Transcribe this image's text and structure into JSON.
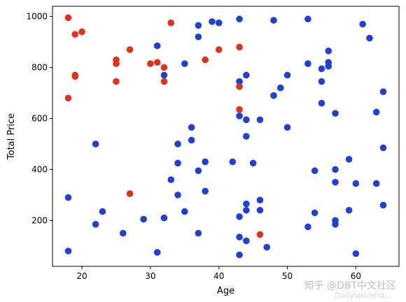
{
  "chart_data": {
    "type": "scatter",
    "title": "",
    "xlabel": "Age",
    "ylabel": "Total Price",
    "xlim": [
      15.7,
      66.3
    ],
    "ylim": [
      20,
      1040
    ],
    "xticks": [
      20,
      30,
      40,
      50,
      60
    ],
    "yticks": [
      200,
      400,
      600,
      800,
      1000
    ],
    "grid": false,
    "legend": "none",
    "colors": {
      "blue": "#1f3fd6",
      "red": "#e0301e"
    },
    "series": [
      {
        "color": "#1f3fd6",
        "points": [
          [
            18,
            80
          ],
          [
            18,
            290
          ],
          [
            22,
            185
          ],
          [
            22,
            500
          ],
          [
            23,
            235
          ],
          [
            26,
            150
          ],
          [
            29,
            205
          ],
          [
            31,
            75
          ],
          [
            31,
            885
          ],
          [
            32,
            210
          ],
          [
            32,
            770
          ],
          [
            33,
            360
          ],
          [
            34,
            300
          ],
          [
            34,
            425
          ],
          [
            34,
            500
          ],
          [
            35,
            235
          ],
          [
            35,
            815
          ],
          [
            36,
            515
          ],
          [
            36,
            565
          ],
          [
            37,
            150
          ],
          [
            37,
            395
          ],
          [
            37,
            920
          ],
          [
            37,
            965
          ],
          [
            38,
            315
          ],
          [
            38,
            430
          ],
          [
            39,
            980
          ],
          [
            40,
            975
          ],
          [
            42,
            430
          ],
          [
            43,
            65
          ],
          [
            43,
            135
          ],
          [
            43,
            215
          ],
          [
            43,
            610
          ],
          [
            43,
            745
          ],
          [
            43,
            990
          ],
          [
            44,
            120
          ],
          [
            44,
            240
          ],
          [
            44,
            265
          ],
          [
            44,
            530
          ],
          [
            44,
            595
          ],
          [
            44,
            770
          ],
          [
            45,
            425
          ],
          [
            46,
            240
          ],
          [
            46,
            280
          ],
          [
            46,
            595
          ],
          [
            47,
            95
          ],
          [
            48,
            690
          ],
          [
            48,
            985
          ],
          [
            49,
            720
          ],
          [
            50,
            565
          ],
          [
            50,
            770
          ],
          [
            53,
            175
          ],
          [
            53,
            815
          ],
          [
            53,
            990
          ],
          [
            54,
            230
          ],
          [
            54,
            395
          ],
          [
            55,
            660
          ],
          [
            55,
            745
          ],
          [
            55,
            795
          ],
          [
            56,
            805
          ],
          [
            56,
            820
          ],
          [
            56,
            865
          ],
          [
            57,
            185
          ],
          [
            57,
            200
          ],
          [
            57,
            350
          ],
          [
            57,
            400
          ],
          [
            57,
            620
          ],
          [
            59,
            240
          ],
          [
            59,
            440
          ],
          [
            60,
            70
          ],
          [
            60,
            345
          ],
          [
            61,
            970
          ],
          [
            62,
            915
          ],
          [
            63,
            345
          ],
          [
            63,
            625
          ],
          [
            64,
            260
          ],
          [
            64,
            485
          ],
          [
            64,
            705
          ]
        ]
      },
      {
        "color": "#e0301e",
        "points": [
          [
            18,
            680
          ],
          [
            18,
            995
          ],
          [
            19,
            765
          ],
          [
            19,
            770
          ],
          [
            19,
            930
          ],
          [
            20,
            940
          ],
          [
            25,
            745
          ],
          [
            25,
            815
          ],
          [
            25,
            830
          ],
          [
            27,
            305
          ],
          [
            27,
            870
          ],
          [
            30,
            815
          ],
          [
            31,
            820
          ],
          [
            32,
            745
          ],
          [
            32,
            800
          ],
          [
            33,
            975
          ],
          [
            38,
            830
          ],
          [
            40,
            870
          ],
          [
            43,
            635
          ],
          [
            43,
            725
          ],
          [
            43,
            880
          ],
          [
            46,
            145
          ]
        ]
      }
    ]
  },
  "watermark": {
    "text": "知乎 @DBT中文社区",
    "url": "Dailyspolaria..."
  }
}
